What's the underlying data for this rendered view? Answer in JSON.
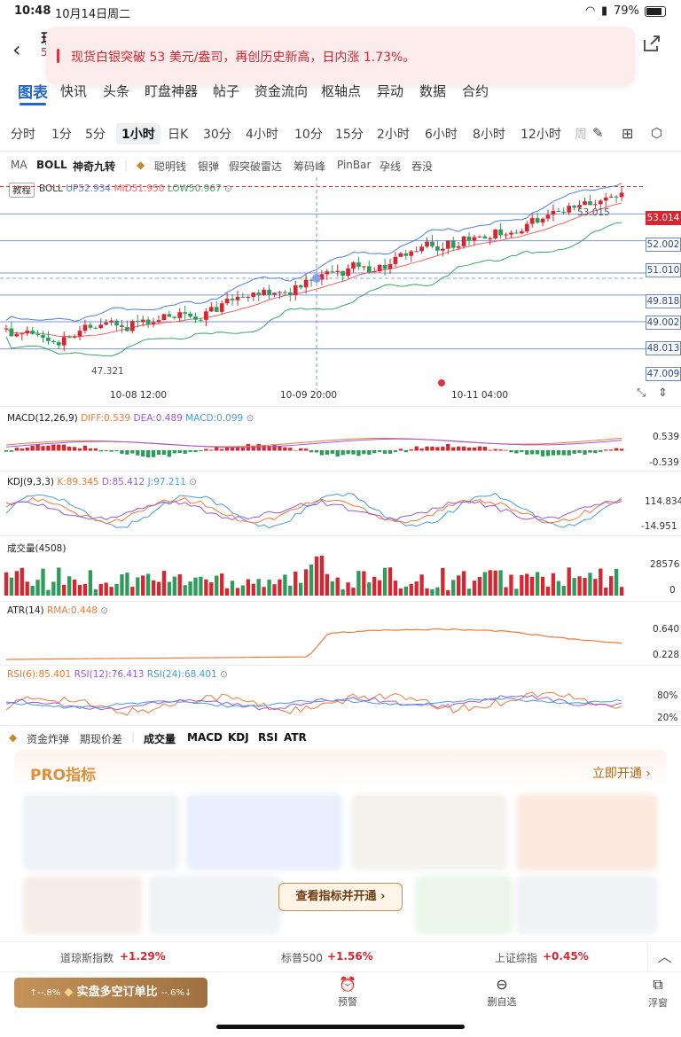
{
  "status": {
    "time": "10:48",
    "date": "10月14日周二",
    "battery": "79%",
    "wifi_icon": "wifi-icon",
    "battery_icon": "battery-icon"
  },
  "header": {
    "title_partial": "现",
    "code_partial": "5",
    "back_icon": "back-arrow-icon",
    "share_icon": "share-icon"
  },
  "toast": {
    "message": "现货白银突破 53 美元/盎司，再创历史新高，日内涨 1.73%。"
  },
  "main_tabs": [
    "图表",
    "快讯",
    "头条",
    "盯盘神器",
    "帖子",
    "资金流向",
    "枢轴点",
    "异动",
    "数据",
    "合约"
  ],
  "periods": [
    "分时",
    "1分",
    "5分",
    "1小时",
    "日K",
    "30分",
    "4小时",
    "10分",
    "15分",
    "2小时",
    "6小时",
    "8小时",
    "12小时",
    "周"
  ],
  "period_selected": "1小时",
  "indicator_tabs": {
    "ma": "MA",
    "boll": "BOLL",
    "magic": "神奇九转",
    "smart": "聪明钱",
    "silver": "银弹",
    "fake": "假突破雷达",
    "chip": "筹码峰",
    "pinbar": "PinBar",
    "pregnant": "孕线",
    "engulf": "吞没"
  },
  "boll": {
    "tutorial": "教程",
    "name": "BOLL",
    "up": "UP52.934",
    "mid": "MID51.950",
    "low": "LOW50.967",
    "high_mark": "53.015",
    "low_mark": "47.321"
  },
  "price_levels": [
    "53.014",
    "52.002",
    "51.010",
    "49.818",
    "49.002",
    "48.013",
    "47.009"
  ],
  "time_labels": [
    "10-08 12:00",
    "10-09 20:00",
    "10-11 04:00"
  ],
  "macd": {
    "name": "MACD(12,26,9)",
    "diff": "DIFF:0.539",
    "dea": "DEA:0.489",
    "macd": "MACD:0.099",
    "top": "0.539",
    "bottom": "-0.539"
  },
  "kdj": {
    "name": "KDJ(9,3,3)",
    "k": "K:89.345",
    "d": "D:85.412",
    "j": "J:97.211",
    "top": "114.834",
    "bottom": "-14.951"
  },
  "vol": {
    "name": "成交量(4508)",
    "top": "28576",
    "bottom": "0"
  },
  "atr": {
    "name": "ATR(14)",
    "rma": "RMA:0.448",
    "top": "0.640",
    "bottom": "0.228"
  },
  "rsi": {
    "r6": "RSI(6):85.401",
    "r12": "RSI(12):76.413",
    "r24": "RSI(24):68.401",
    "top": "80%",
    "bottom": "20%"
  },
  "bottom_tabs": {
    "fund": "资金炸弹",
    "future": "期现价差",
    "vol": "成交量",
    "macd": "MACD",
    "kdj": "KDJ",
    "rsi": "RSI",
    "atr": "ATR"
  },
  "pro": {
    "title": "PRO指标",
    "open": "立即开通",
    "view": "查看指标并开通"
  },
  "indices": [
    {
      "name": "道琼斯指数",
      "chg": "+1.29%"
    },
    {
      "name": "标普500",
      "chg": "+1.56%"
    },
    {
      "name": "上证综指",
      "chg": "+0.45%"
    }
  ],
  "dock": {
    "ratio_left": "↑--.8%",
    "ratio_text": "实盘多空订单比",
    "ratio_right": "--.6%↓",
    "alert": "预警",
    "remove": "删自选",
    "float": "浮窗"
  },
  "colors": {
    "up": "#d8252f",
    "down": "#2e9b5a",
    "accent": "#1f66d6"
  }
}
